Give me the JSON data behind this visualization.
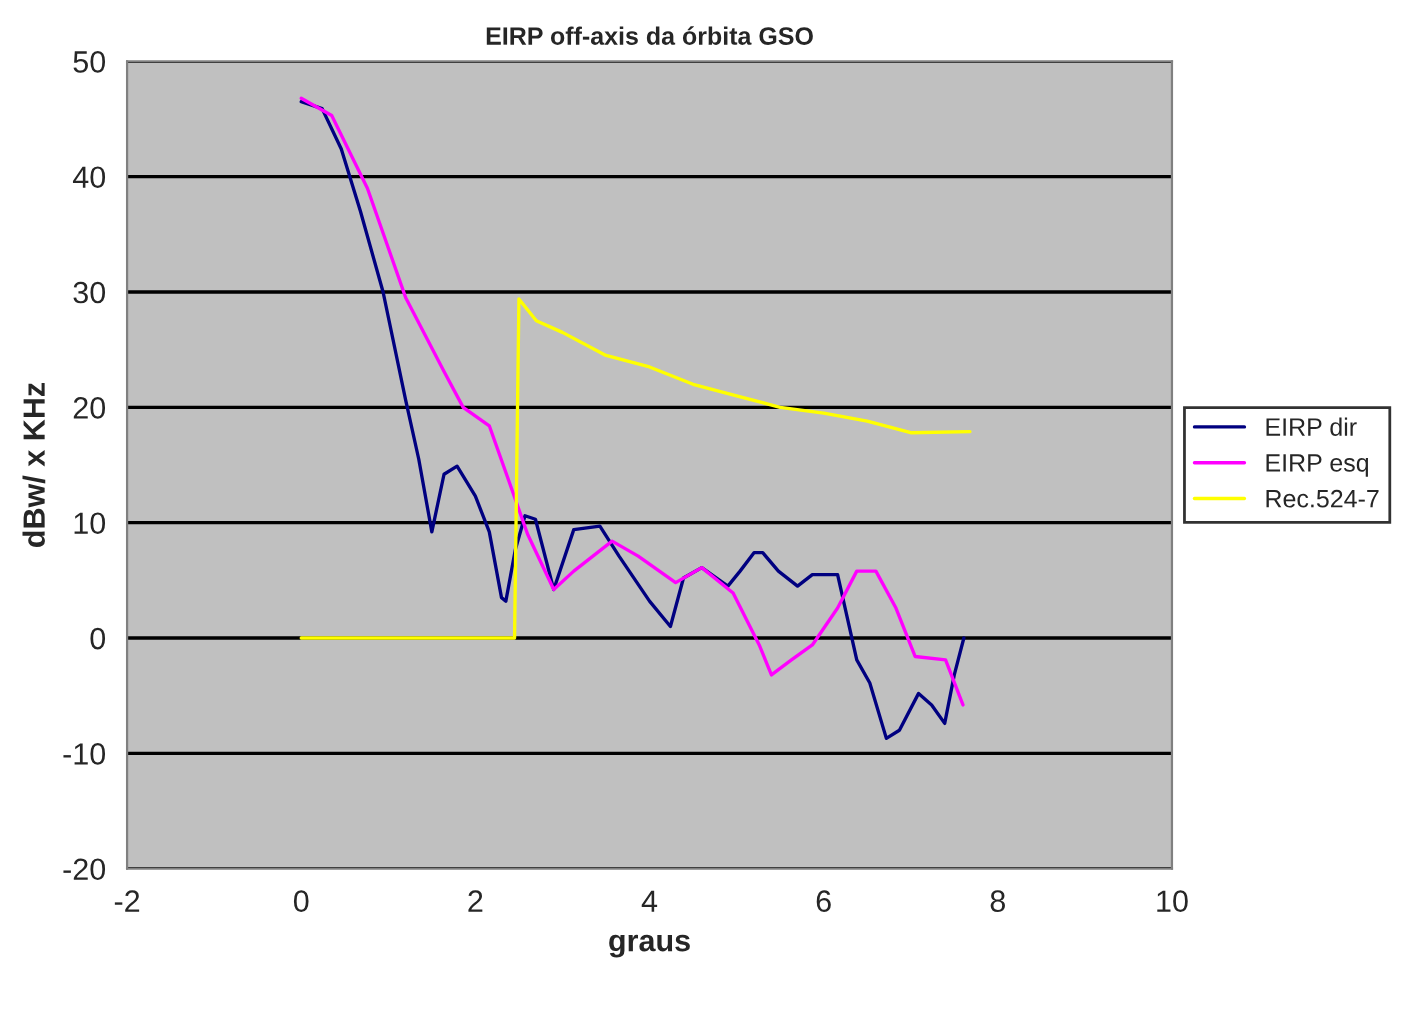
{
  "chart_data": {
    "type": "line",
    "title": "EIRP off-axis da órbita GSO",
    "xlabel": "graus",
    "ylabel": "dBw/ x KHz",
    "xlim": [
      -2,
      10
    ],
    "xticks": [
      -2,
      0,
      2,
      4,
      6,
      8,
      10
    ],
    "ylim": [
      -20,
      50
    ],
    "yticks": [
      -20,
      -10,
      0,
      10,
      20,
      30,
      40,
      50
    ],
    "grid": "y",
    "legend": "right",
    "marker": "none",
    "line_style": "solid",
    "series": [
      {
        "name": "EIRP dir",
        "color": "#000080",
        "x": [
          0,
          0.24,
          0.46,
          0.68,
          0.94,
          1.2,
          1.35,
          1.5,
          1.64,
          1.79,
          2.0,
          2.16,
          2.3,
          2.35,
          2.46,
          2.57,
          2.69,
          2.9,
          3.13,
          3.43,
          3.65,
          4.0,
          4.24,
          4.39,
          4.6,
          4.9,
          5.04,
          5.2,
          5.3,
          5.48,
          5.7,
          5.87,
          6.16,
          6.38,
          6.53,
          6.72,
          6.87,
          7.09,
          7.24,
          7.39,
          7.5,
          7.61
        ],
        "values": [
          46.5,
          45.9,
          42.4,
          37,
          30,
          20.6,
          15.5,
          9.2,
          14.2,
          14.9,
          12.3,
          9.2,
          3.5,
          3.2,
          7.7,
          10.6,
          10.3,
          4.2,
          9.4,
          9.7,
          7.1,
          3.2,
          1,
          5.2,
          6.1,
          4.5,
          5.8,
          7.4,
          7.4,
          5.8,
          4.5,
          5.5,
          5.5,
          -1.9,
          -3.9,
          -8.7,
          -8,
          -4.8,
          -5.8,
          -7.4,
          -3.2,
          0
        ]
      },
      {
        "name": "EIRP esq",
        "color": "#ff00ff",
        "x": [
          0,
          0.35,
          0.76,
          1.2,
          1.64,
          1.86,
          2.16,
          2.39,
          2.6,
          2.9,
          3.13,
          3.57,
          3.87,
          4.3,
          4.6,
          4.96,
          5.26,
          5.4,
          5.63,
          5.87,
          6.16,
          6.38,
          6.6,
          6.83,
          7.05,
          7.4,
          7.6
        ],
        "values": [
          46.8,
          45.3,
          39,
          29.5,
          23.1,
          20,
          18.4,
          13.5,
          9,
          4.2,
          5.8,
          8.4,
          7.1,
          4.8,
          6.1,
          3.9,
          -0.6,
          -3.2,
          -1.9,
          -0.6,
          2.6,
          5.8,
          5.8,
          2.6,
          -1.6,
          -1.9,
          -5.8
        ]
      },
      {
        "name": "Rec.524-7",
        "color": "#ffff00",
        "x": [
          0,
          2.45,
          2.5,
          2.7,
          3.0,
          3.5,
          4.0,
          4.5,
          5.0,
          5.5,
          6.0,
          6.5,
          7.0,
          7.68
        ],
        "values": [
          0,
          0,
          29.4,
          27.5,
          26.5,
          24.5,
          23.5,
          22,
          21,
          20,
          19.5,
          18.8,
          17.8,
          17.9
        ]
      }
    ]
  }
}
